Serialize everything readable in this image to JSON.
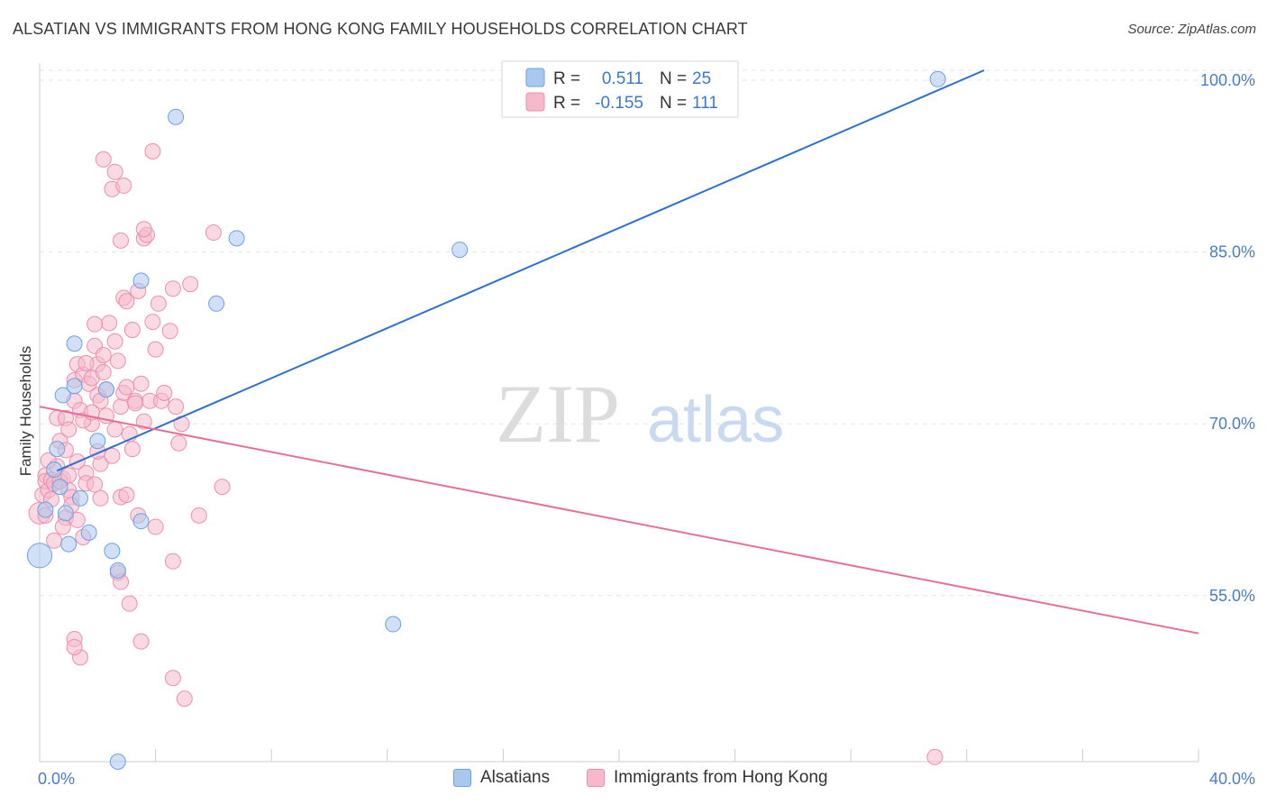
{
  "title": "ALSATIAN VS IMMIGRANTS FROM HONG KONG FAMILY HOUSEHOLDS CORRELATION CHART",
  "source": "Source: ZipAtlas.com",
  "watermark": {
    "zip": "ZIP",
    "atlas": "atlas"
  },
  "colors": {
    "blue_fill": "#a9c8f0",
    "blue_stroke": "#6f9fe0",
    "blue_line": "#2f6fcf",
    "pink_fill": "#f6b9cc",
    "pink_stroke": "#ec8fae",
    "pink_line": "#e4709a",
    "tick_text": "#4a7cc9",
    "grid": "#e3e3e3"
  },
  "stats_legend": [
    {
      "r_label": "R =",
      "r_value": "0.511",
      "n_label": "N =",
      "n_value": "25",
      "series": "Alsatians"
    },
    {
      "r_label": "R =",
      "r_value": "-0.155",
      "n_label": "N =",
      "n_value": "111",
      "series": "Immigrants from Hong Kong"
    }
  ],
  "bottom_legend": [
    "Alsatians",
    "Immigrants from Hong Kong"
  ],
  "chart_data": {
    "type": "scatter",
    "title": "ALSATIAN VS IMMIGRANTS FROM HONG KONG FAMILY HOUSEHOLDS CORRELATION CHART",
    "xlabel": "",
    "ylabel": "Family Households",
    "xlim": [
      0,
      40
    ],
    "ylim": [
      40.5,
      101.5
    ],
    "x_tick_labels": [
      {
        "value": 0,
        "label": "0.0%"
      },
      {
        "value": 40,
        "label": "40.0%"
      }
    ],
    "y_tick_labels": [
      {
        "value": 100,
        "label": "100.0%"
      },
      {
        "value": 85,
        "label": "85.0%"
      },
      {
        "value": 70,
        "label": "70.0%"
      },
      {
        "value": 55,
        "label": "55.0%"
      }
    ],
    "x_minor_ticks": [
      4,
      8,
      12,
      16,
      20,
      24,
      28,
      32,
      36
    ],
    "series": [
      {
        "name": "Alsatians",
        "trendline": {
          "x0": 0.6,
          "y0": 65.9,
          "x1": 32.6,
          "y1": 101.7
        },
        "points": [
          [
            0.0,
            58.5,
            1.6
          ],
          [
            0.2,
            62.5,
            1
          ],
          [
            0.5,
            66.0,
            1
          ],
          [
            0.7,
            64.5,
            1
          ],
          [
            0.6,
            67.8,
            1
          ],
          [
            0.8,
            72.5,
            1
          ],
          [
            0.9,
            62.2,
            1
          ],
          [
            1.0,
            59.5,
            1
          ],
          [
            1.2,
            77.0,
            1
          ],
          [
            1.2,
            73.3,
            1
          ],
          [
            1.4,
            63.5,
            1
          ],
          [
            1.7,
            60.5,
            1
          ],
          [
            2.0,
            68.5,
            1
          ],
          [
            2.3,
            73.0,
            1
          ],
          [
            2.5,
            58.9,
            1
          ],
          [
            2.7,
            57.2,
            1
          ],
          [
            2.7,
            40.5,
            1
          ],
          [
            3.5,
            61.5,
            1
          ],
          [
            3.5,
            82.5,
            1
          ],
          [
            4.7,
            96.8,
            1
          ],
          [
            6.1,
            80.5,
            1
          ],
          [
            6.8,
            86.2,
            1
          ],
          [
            14.5,
            85.2,
            1
          ],
          [
            12.2,
            52.5,
            1
          ],
          [
            31.0,
            100.1,
            1
          ]
        ]
      },
      {
        "name": "Immigrants from Hong Kong",
        "trendline": {
          "x0": 0.0,
          "y0": 71.5,
          "x1": 40.0,
          "y1": 51.7
        },
        "points": [
          [
            0.0,
            62.2,
            1.4
          ],
          [
            0.1,
            63.8,
            1
          ],
          [
            0.2,
            65.5,
            1
          ],
          [
            0.2,
            65.0,
            1
          ],
          [
            0.3,
            64.2,
            1
          ],
          [
            0.4,
            65.1,
            1
          ],
          [
            0.5,
            59.8,
            1
          ],
          [
            0.6,
            70.5,
            1
          ],
          [
            0.6,
            66.3,
            1
          ],
          [
            0.7,
            68.5,
            1
          ],
          [
            0.8,
            65.2,
            1
          ],
          [
            0.9,
            67.7,
            1
          ],
          [
            0.9,
            70.5,
            1
          ],
          [
            0.9,
            61.8,
            1
          ],
          [
            1.0,
            69.5,
            1
          ],
          [
            1.0,
            64.2,
            1
          ],
          [
            1.1,
            63.6,
            1
          ],
          [
            1.2,
            73.8,
            1
          ],
          [
            1.2,
            72.0,
            1
          ],
          [
            1.3,
            75.2,
            1
          ],
          [
            1.3,
            66.7,
            1
          ],
          [
            1.4,
            71.2,
            1
          ],
          [
            1.5,
            74.3,
            1
          ],
          [
            1.5,
            60.1,
            1
          ],
          [
            1.6,
            65.7,
            1
          ],
          [
            1.6,
            64.8,
            1
          ],
          [
            1.7,
            73.5,
            1
          ],
          [
            1.8,
            70.0,
            1
          ],
          [
            1.8,
            74.0,
            1
          ],
          [
            1.9,
            76.8,
            1
          ],
          [
            2.0,
            75.2,
            1
          ],
          [
            2.0,
            72.5,
            1
          ],
          [
            2.1,
            66.5,
            1
          ],
          [
            2.1,
            63.5,
            1
          ],
          [
            2.2,
            74.5,
            1
          ],
          [
            2.2,
            76.0,
            1
          ],
          [
            2.3,
            70.7,
            1
          ],
          [
            2.4,
            78.8,
            1
          ],
          [
            2.5,
            67.2,
            1
          ],
          [
            2.6,
            77.2,
            1
          ],
          [
            2.6,
            69.5,
            1
          ],
          [
            2.7,
            75.5,
            1
          ],
          [
            2.8,
            71.5,
            1
          ],
          [
            2.8,
            63.6,
            1
          ],
          [
            2.9,
            81.0,
            1
          ],
          [
            2.9,
            72.7,
            1
          ],
          [
            3.0,
            80.7,
            1
          ],
          [
            3.0,
            73.2,
            1
          ],
          [
            3.1,
            69.1,
            1
          ],
          [
            3.2,
            78.2,
            1
          ],
          [
            3.2,
            67.8,
            1
          ],
          [
            3.3,
            72.0,
            1
          ],
          [
            3.3,
            71.8,
            1
          ],
          [
            3.4,
            81.6,
            1
          ],
          [
            3.5,
            73.5,
            1
          ],
          [
            3.6,
            70.2,
            1
          ],
          [
            3.6,
            86.2,
            1
          ],
          [
            3.7,
            86.5,
            1
          ],
          [
            3.8,
            72.0,
            1
          ],
          [
            3.9,
            78.9,
            1
          ],
          [
            4.0,
            76.5,
            1
          ],
          [
            4.1,
            80.5,
            1
          ],
          [
            4.2,
            72.0,
            1
          ],
          [
            4.3,
            72.7,
            1
          ],
          [
            4.5,
            78.1,
            1
          ],
          [
            4.6,
            81.8,
            1
          ],
          [
            4.7,
            71.5,
            1
          ],
          [
            4.8,
            68.3,
            1
          ],
          [
            4.9,
            70.0,
            1
          ],
          [
            5.2,
            82.2,
            1
          ],
          [
            5.5,
            62.0,
            1
          ],
          [
            6.0,
            86.7,
            1
          ],
          [
            6.3,
            64.5,
            1
          ],
          [
            2.6,
            92.0,
            1
          ],
          [
            2.5,
            90.5,
            1
          ],
          [
            2.9,
            90.8,
            1
          ],
          [
            3.9,
            93.8,
            1
          ],
          [
            3.6,
            87.0,
            1
          ],
          [
            2.8,
            86.0,
            1
          ],
          [
            2.2,
            93.1,
            1
          ],
          [
            1.9,
            78.7,
            1
          ],
          [
            1.6,
            75.3,
            1
          ],
          [
            2.3,
            73.0,
            1
          ],
          [
            2.1,
            72.0,
            1
          ],
          [
            3.0,
            63.8,
            1
          ],
          [
            3.4,
            62.0,
            1
          ],
          [
            2.7,
            57.0,
            1
          ],
          [
            2.8,
            56.2,
            1
          ],
          [
            3.1,
            54.3,
            1
          ],
          [
            3.5,
            51.0,
            1
          ],
          [
            4.0,
            61.0,
            1
          ],
          [
            4.6,
            58.0,
            1
          ],
          [
            1.2,
            51.2,
            1
          ],
          [
            1.4,
            49.6,
            1
          ],
          [
            1.2,
            50.5,
            1
          ],
          [
            4.6,
            47.8,
            1
          ],
          [
            5.0,
            46.0,
            1
          ],
          [
            0.3,
            66.8,
            1
          ],
          [
            0.4,
            63.4,
            1
          ],
          [
            0.5,
            64.8,
            1
          ],
          [
            0.7,
            65.0,
            1
          ],
          [
            1.0,
            65.5,
            1
          ],
          [
            1.1,
            62.9,
            1
          ],
          [
            1.3,
            61.6,
            1
          ],
          [
            0.8,
            61.0,
            1
          ],
          [
            1.9,
            64.7,
            1
          ],
          [
            2.0,
            67.6,
            1
          ],
          [
            30.9,
            40.9,
            1
          ],
          [
            1.5,
            70.3,
            1
          ],
          [
            1.8,
            71.0,
            1
          ],
          [
            0.2,
            62.0,
            1
          ]
        ]
      }
    ]
  }
}
